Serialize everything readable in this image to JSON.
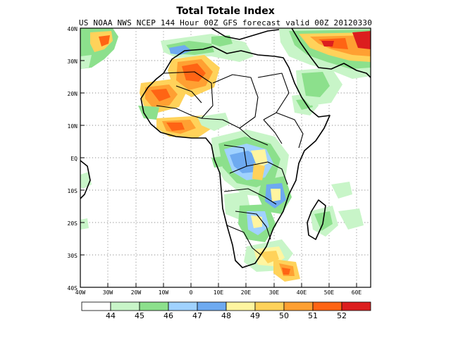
{
  "title": "Total Totale Index",
  "subtitle": "US NOAA NWS NCEP 144 Hour 00Z GFS forecast valid 00Z 20120330",
  "map": {
    "lon_range": [
      -40,
      65
    ],
    "lat_range": [
      -40,
      40
    ],
    "lat_labels": [
      "40N",
      "30N",
      "20N",
      "10N",
      "EQ",
      "10S",
      "20S",
      "30S",
      "40S"
    ],
    "lon_labels": [
      "40W",
      "30W",
      "20W",
      "10W",
      "0",
      "10E",
      "20E",
      "30E",
      "40E",
      "50E",
      "60E"
    ],
    "gridlines": "dotted"
  },
  "colorbar": {
    "labels": [
      "44",
      "45",
      "46",
      "47",
      "48",
      "49",
      "50",
      "51",
      "52"
    ],
    "colors": [
      "#ffffff",
      "#c8f5c8",
      "#8ce08c",
      "#a0d2ff",
      "#6eaaf0",
      "#fff5a0",
      "#ffd25a",
      "#ffa032",
      "#ff6414",
      "#dc1e1e"
    ]
  }
}
